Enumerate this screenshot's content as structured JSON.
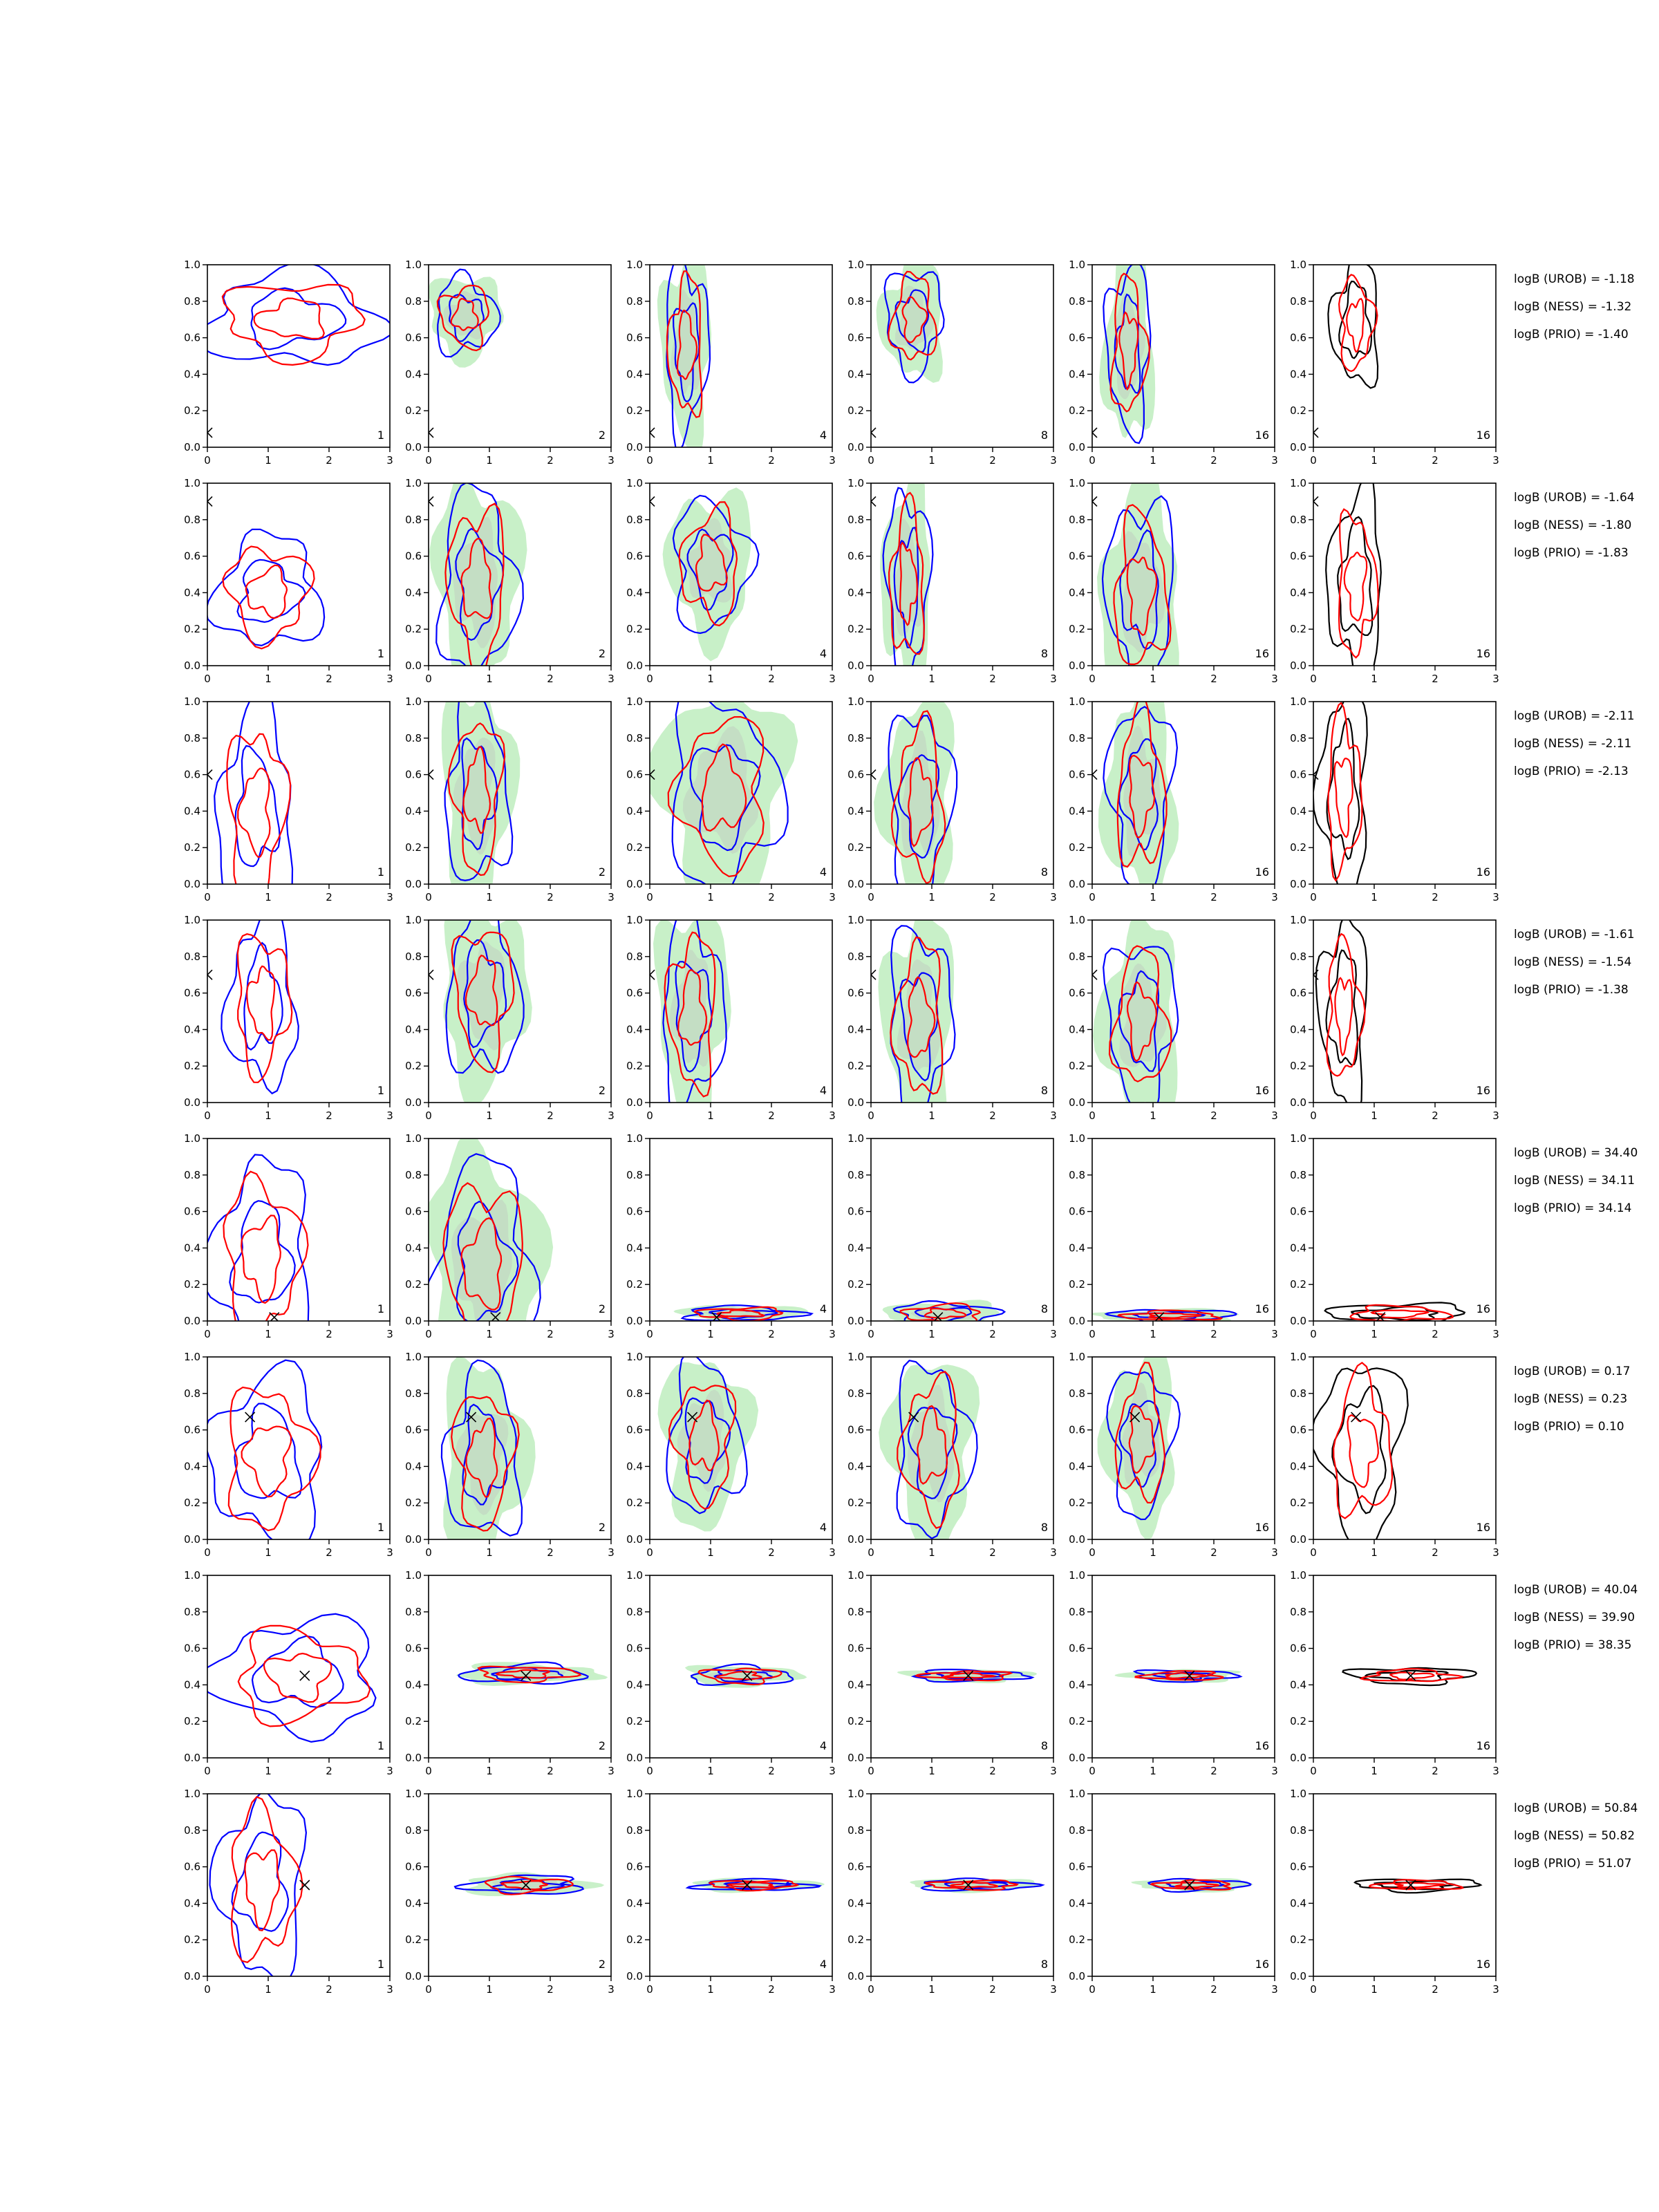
{
  "colors": {
    "urob": "#0000ff",
    "ness": "#ff0000",
    "prio": "#000000",
    "fill_outer": "#c8f0c8",
    "fill_inner": "#bcbcbc"
  },
  "axes": {
    "x_ticks": [
      "0",
      "1",
      "2",
      "3"
    ],
    "y_ticks": [
      "0.0",
      "0.2",
      "0.4",
      "0.6",
      "0.8",
      "1.0"
    ],
    "xlim": [
      0,
      3
    ],
    "ylim": [
      0,
      1
    ]
  },
  "panel_numbers": [
    "1",
    "2",
    "4",
    "8",
    "16",
    "16"
  ],
  "chart_data": {
    "type": "contour",
    "rows": [
      {
        "truth": [
          0.0,
          0.08
        ],
        "logB": [
          "logB (UROB) = -1.18",
          "logB (NESS) = -1.32",
          "logB (PRIO) = -1.40"
        ],
        "shapes": [
          [
            1.4,
            0.7,
            1.4,
            0.25
          ],
          [
            0.6,
            0.72,
            0.5,
            0.2
          ],
          [
            0.6,
            0.55,
            0.35,
            0.45
          ],
          [
            0.7,
            0.7,
            0.45,
            0.28
          ],
          [
            0.6,
            0.55,
            0.35,
            0.45
          ],
          [
            0.7,
            0.68,
            0.35,
            0.3
          ]
        ]
      },
      {
        "truth": [
          0.0,
          0.9
        ],
        "logB": [
          "logB (UROB) = -1.64",
          "logB (NESS) = -1.80",
          "logB (PRIO) = -1.83"
        ],
        "shapes": [
          [
            1.0,
            0.4,
            0.85,
            0.3
          ],
          [
            0.8,
            0.45,
            0.6,
            0.5
          ],
          [
            1.0,
            0.55,
            0.6,
            0.35
          ],
          [
            0.6,
            0.45,
            0.35,
            0.5
          ],
          [
            0.8,
            0.4,
            0.55,
            0.5
          ],
          [
            0.7,
            0.45,
            0.4,
            0.45
          ]
        ]
      },
      {
        "truth": [
          0.0,
          0.6
        ],
        "logB": [
          "logB (UROB) = -2.11",
          "logB (NESS) = -2.11",
          "logB (PRIO) = -2.13"
        ],
        "shapes": [
          [
            0.8,
            0.4,
            0.6,
            0.55
          ],
          [
            0.8,
            0.5,
            0.5,
            0.5
          ],
          [
            1.2,
            0.5,
            0.9,
            0.5
          ],
          [
            0.8,
            0.45,
            0.5,
            0.5
          ],
          [
            0.8,
            0.5,
            0.5,
            0.5
          ],
          [
            0.5,
            0.5,
            0.35,
            0.5
          ]
        ]
      },
      {
        "truth": [
          0.0,
          0.7
        ],
        "logB": [
          "logB (UROB) = -1.61",
          "logB (NESS) = -1.54",
          "logB (PRIO) = -1.38"
        ],
        "shapes": [
          [
            0.9,
            0.55,
            0.55,
            0.45
          ],
          [
            0.9,
            0.6,
            0.6,
            0.45
          ],
          [
            0.7,
            0.5,
            0.5,
            0.5
          ],
          [
            0.8,
            0.45,
            0.5,
            0.5
          ],
          [
            0.8,
            0.45,
            0.55,
            0.45
          ],
          [
            0.5,
            0.5,
            0.35,
            0.45
          ]
        ]
      },
      {
        "truth": [
          1.1,
          0.02
        ],
        "logB": [
          "logB (UROB) = 34.40",
          "logB (NESS) = 34.11",
          "logB (PRIO) = 34.14"
        ],
        "shapes": [
          [
            0.9,
            0.35,
            0.8,
            0.5
          ],
          [
            0.9,
            0.3,
            0.8,
            0.55
          ],
          [
            1.5,
            0.04,
            0.9,
            0.04
          ],
          [
            1.2,
            0.04,
            0.8,
            0.06
          ],
          [
            1.3,
            0.03,
            1.0,
            0.03
          ],
          [
            1.4,
            0.04,
            1.0,
            0.05
          ]
        ]
      },
      {
        "truth": [
          0.7,
          0.67
        ],
        "logB": [
          "logB (UROB) = 0.17",
          "logB (NESS) = 0.23",
          "logB (PRIO) = 0.10"
        ],
        "shapes": [
          [
            1.0,
            0.45,
            0.9,
            0.45
          ],
          [
            0.9,
            0.45,
            0.6,
            0.45
          ],
          [
            0.9,
            0.55,
            0.6,
            0.4
          ],
          [
            1.0,
            0.5,
            0.6,
            0.45
          ],
          [
            0.8,
            0.55,
            0.5,
            0.4
          ],
          [
            0.8,
            0.5,
            0.6,
            0.45
          ]
        ]
      },
      {
        "truth": [
          1.6,
          0.45
        ],
        "logB": [
          "logB (UROB) = 40.04",
          "logB (NESS) = 39.90",
          "logB (PRIO) = 38.35"
        ],
        "shapes": [
          [
            1.5,
            0.45,
            1.3,
            0.3
          ],
          [
            1.6,
            0.46,
            1.0,
            0.05
          ],
          [
            1.5,
            0.45,
            0.8,
            0.05
          ],
          [
            1.6,
            0.45,
            0.9,
            0.03
          ],
          [
            1.5,
            0.45,
            0.8,
            0.03
          ],
          [
            1.6,
            0.45,
            0.9,
            0.04
          ]
        ]
      },
      {
        "truth": [
          1.6,
          0.5
        ],
        "logB": [
          "logB (UROB) = 50.84",
          "logB (NESS) = 50.82",
          "logB (PRIO) = 51.07"
        ],
        "shapes": [
          [
            0.9,
            0.5,
            0.7,
            0.48
          ],
          [
            1.6,
            0.5,
            0.9,
            0.05
          ],
          [
            1.7,
            0.5,
            0.9,
            0.03
          ],
          [
            1.7,
            0.5,
            0.9,
            0.03
          ],
          [
            1.7,
            0.5,
            0.8,
            0.03
          ],
          [
            1.7,
            0.5,
            0.9,
            0.03
          ]
        ]
      }
    ]
  }
}
